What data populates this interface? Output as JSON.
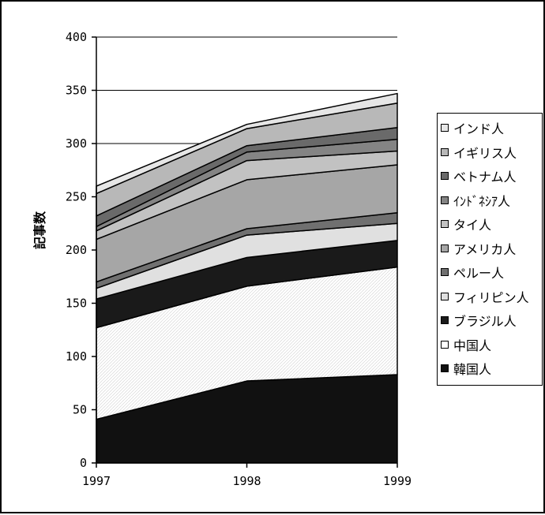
{
  "chart_data": {
    "type": "area",
    "stacked": true,
    "x": [
      "1997",
      "1998",
      "1999"
    ],
    "ylabel": "記事数",
    "ylim": [
      0,
      400
    ],
    "yticks": [
      "0",
      "50",
      "100",
      "150",
      "200",
      "250",
      "300",
      "350",
      "400"
    ],
    "grid": true,
    "legend_position": "right",
    "series": [
      {
        "name": "韓国人",
        "values": [
          41,
          77,
          83
        ],
        "color": "#111111"
      },
      {
        "name": "中国人",
        "values": [
          86,
          89,
          101
        ],
        "color": "#ffffff"
      },
      {
        "name": "ブラジル人",
        "values": [
          27,
          27,
          25
        ],
        "color": "#1a1a1a"
      },
      {
        "name": "フィリピン人",
        "values": [
          10,
          21,
          16
        ],
        "color": "#e0e0e0"
      },
      {
        "name": "ペルー人",
        "values": [
          6,
          6,
          10
        ],
        "color": "#707070"
      },
      {
        "name": "アメリカ人",
        "values": [
          40,
          46,
          45
        ],
        "color": "#a6a6a6"
      },
      {
        "name": "タイ人",
        "values": [
          8,
          18,
          13
        ],
        "color": "#c2c2c2"
      },
      {
        "name": "ｲﾝﾄﾞﾈｼｱ人",
        "values": [
          4,
          8,
          11
        ],
        "color": "#848484"
      },
      {
        "name": "ベトナム人",
        "values": [
          10,
          6,
          11
        ],
        "color": "#6a6a6a"
      },
      {
        "name": "イギリス人",
        "values": [
          21,
          16,
          23
        ],
        "color": "#b8b8b8"
      },
      {
        "name": "インド人",
        "values": [
          7,
          4,
          9
        ],
        "color": "#e6e6e6"
      }
    ]
  }
}
